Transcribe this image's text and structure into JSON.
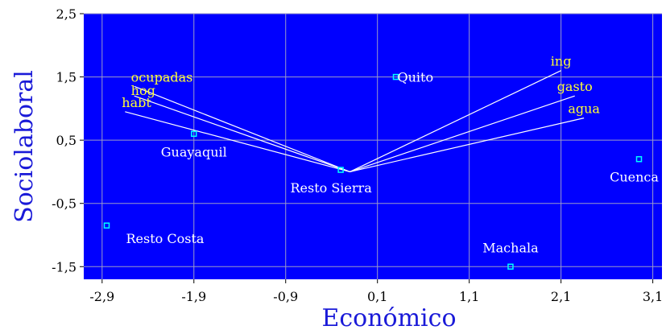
{
  "chart_data": {
    "type": "scatter",
    "title": "",
    "xlabel": "Económico",
    "ylabel": "Sociolaboral",
    "xlim": [
      -3.1,
      3.2
    ],
    "ylim": [
      -1.7,
      2.5
    ],
    "grid": true,
    "colors": {
      "plot_background": "#0000ff",
      "grid": "#9a9ac8",
      "point_marker": "#00ffff",
      "point_label": "#ffffff",
      "vector": "#ffffff",
      "vector_label": "#ffff33",
      "axis_title": "#1a1ad8"
    },
    "xticks": [
      {
        "value": -2.9,
        "label": "-2,9"
      },
      {
        "value": -1.9,
        "label": "-1,9"
      },
      {
        "value": -0.9,
        "label": "-0,9"
      },
      {
        "value": 0.1,
        "label": "0,1"
      },
      {
        "value": 1.1,
        "label": "1,1"
      },
      {
        "value": 2.1,
        "label": "2,1"
      },
      {
        "value": 3.1,
        "label": "3,1"
      }
    ],
    "yticks": [
      {
        "value": 2.5,
        "label": "2,5"
      },
      {
        "value": 1.5,
        "label": "1,5"
      },
      {
        "value": 0.5,
        "label": "0,5"
      },
      {
        "value": -0.5,
        "label": "-0,5"
      },
      {
        "value": -1.5,
        "label": "-1,5"
      }
    ],
    "origin": {
      "x": -0.2,
      "y": 0.0
    },
    "points": [
      {
        "name": "Quito",
        "x": 0.3,
        "y": 1.5,
        "label_anchor": "right"
      },
      {
        "name": "Guayaquil",
        "x": -1.9,
        "y": 0.6,
        "label_anchor": "below"
      },
      {
        "name": "Resto Sierra",
        "x": -0.3,
        "y": 0.03,
        "label_anchor": "below"
      },
      {
        "name": "Cuenca",
        "x": 2.95,
        "y": 0.2,
        "label_anchor": "below"
      },
      {
        "name": "Resto Costa",
        "x": -2.85,
        "y": -0.85,
        "label_anchor": "below-right"
      },
      {
        "name": "Machala",
        "x": 1.55,
        "y": -1.5,
        "label_anchor": "above"
      }
    ],
    "vectors": [
      {
        "name": "ocupadas",
        "x": -2.55,
        "y": 1.35,
        "label_anchor": "above"
      },
      {
        "name": "hog",
        "x": -2.55,
        "y": 1.2,
        "label_anchor": "above-tight"
      },
      {
        "name": "habt",
        "x": -2.65,
        "y": 0.95,
        "label_anchor": "above"
      },
      {
        "name": "ing",
        "x": 2.1,
        "y": 1.6,
        "label_anchor": "above"
      },
      {
        "name": "gasto",
        "x": 2.25,
        "y": 1.2,
        "label_anchor": "above"
      },
      {
        "name": "agua",
        "x": 2.35,
        "y": 0.85,
        "label_anchor": "above"
      }
    ]
  }
}
